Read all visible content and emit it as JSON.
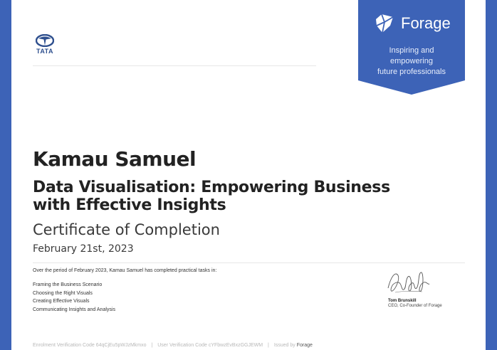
{
  "issuer_logo": {
    "text": "TATA",
    "icon": "tata-logo-icon",
    "color": "#2e4f8e"
  },
  "forage": {
    "brand": "Forage",
    "icon": "forage-logo-icon",
    "tagline": [
      "Inspiring and",
      "empowering",
      "future professionals"
    ],
    "accent_color": "#3d63b7"
  },
  "certificate": {
    "recipient": "Kamau Samuel",
    "course_lines": [
      "Data Visualisation: Empowering Business",
      "with Effective Insights"
    ],
    "type": "Certificate of Completion",
    "date": "February 21st, 2023"
  },
  "summary": "Over the period of February 2023, Kamau Samuel has completed practical tasks in:",
  "tasks": [
    "Framing the Business Scenario",
    "Choosing the Right Visuals",
    "Creating Effective Visuals",
    "Communicating Insights and Analysis"
  ],
  "signature": {
    "name": "Tom Brunskill",
    "title": "CEO, Co-Founder of Forage"
  },
  "footer": {
    "enrolment": "Enrolment Verification Code 64qCjEu5pWJzMkmxo",
    "sep1": "|",
    "user": "User Verification Code cYFbwzEvBxzGGJEWM",
    "sep2": "|",
    "issued_by_label": "Issued by",
    "issued_by": "Forage"
  }
}
